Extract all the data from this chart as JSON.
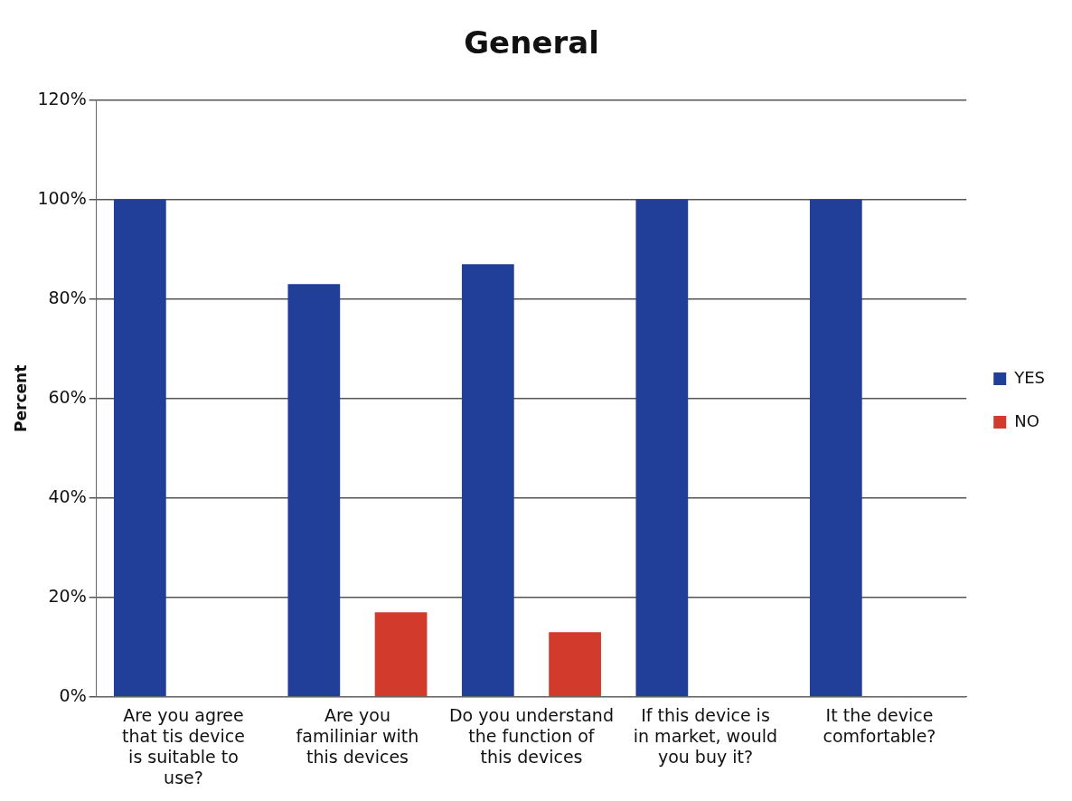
{
  "chart_data": {
    "type": "bar",
    "title": "General",
    "ylabel": "Percent",
    "categories": [
      "Are you agree that tis device is suitable to use?",
      "Are you familiniar with this devices",
      "Do you understand the function of this devices",
      "If this device is in market, would you buy it?",
      "It the device comfortable?"
    ],
    "series": [
      {
        "name": "YES",
        "color": "#213f99",
        "values": [
          100,
          83,
          87,
          100,
          100
        ]
      },
      {
        "name": "NO",
        "color": "#d23b2c",
        "values": [
          0,
          17,
          13,
          0,
          0
        ]
      }
    ],
    "ylim": [
      0,
      120
    ],
    "yticks": [
      {
        "value": 0,
        "label": "0%"
      },
      {
        "value": 20,
        "label": "20%"
      },
      {
        "value": 40,
        "label": "40%"
      },
      {
        "value": 60,
        "label": "60%"
      },
      {
        "value": 80,
        "label": "80%"
      },
      {
        "value": 100,
        "label": "100%"
      },
      {
        "value": 120,
        "label": "120%"
      }
    ],
    "grid": "y",
    "legend": "right"
  }
}
